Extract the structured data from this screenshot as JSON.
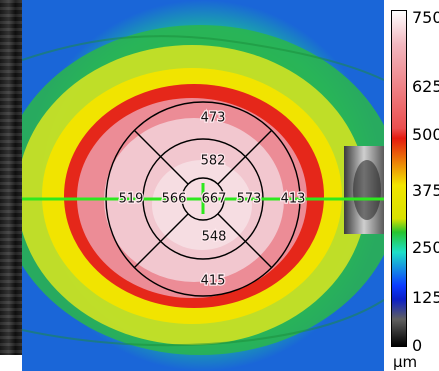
{
  "etdrs_grid": {
    "center": "667",
    "inner_superior": "582",
    "inner_nasal": "566",
    "inner_temporal": "573",
    "inner_inferior": "548",
    "outer_superior": "473",
    "outer_nasal": "519",
    "outer_temporal": "413",
    "outer_inferior": "415"
  },
  "colorbar": {
    "ticks": [
      "750",
      "625",
      "500",
      "375",
      "250",
      "125",
      "0"
    ],
    "unit": "µm"
  },
  "colors": {
    "scan_line": "#2ee81e",
    "grid_line": "#000000",
    "high": "#e51a0e",
    "mid": "#f2e500",
    "low": "#0b3bff"
  }
}
